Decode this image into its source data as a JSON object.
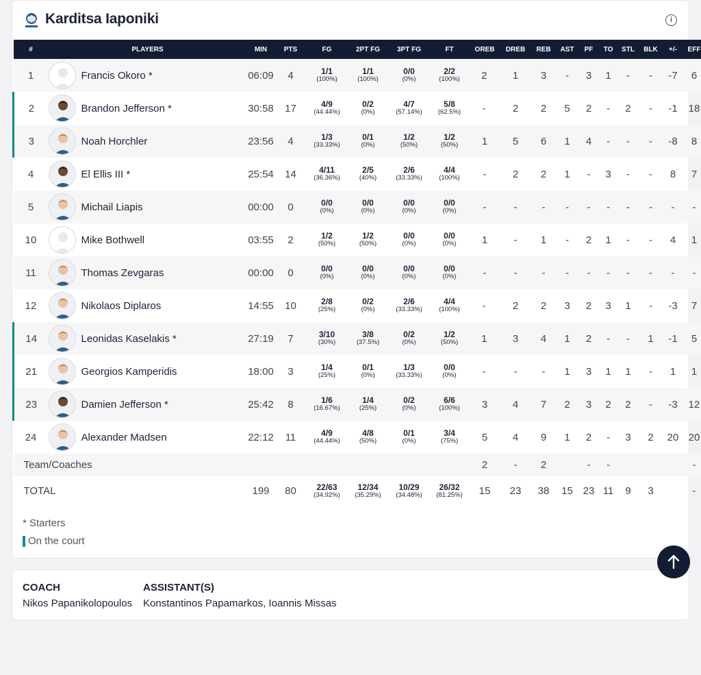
{
  "team": {
    "name": "Karditsa Iaponiki",
    "logo_icon": "team-logo-icon",
    "info_icon": "info-icon"
  },
  "columns": [
    "#",
    "PLAYERS",
    "MIN",
    "PTS",
    "FG",
    "2PT FG",
    "3PT FG",
    "FT",
    "OREB",
    "DREB",
    "REB",
    "AST",
    "PF",
    "TO",
    "STL",
    "BLK",
    "+/-",
    "EFF"
  ],
  "players": [
    {
      "num": "1",
      "name": "Francis Okoro *",
      "oncourt": false,
      "avatar": "empty",
      "min": "06:09",
      "pts": "4",
      "fg": [
        "1/1",
        "(100%)"
      ],
      "fg2": [
        "1/1",
        "(100%)"
      ],
      "fg3": [
        "0/0",
        "(0%)"
      ],
      "ft": [
        "2/2",
        "(100%)"
      ],
      "oreb": "2",
      "dreb": "1",
      "reb": "3",
      "ast": "-",
      "pf": "3",
      "to": "1",
      "stl": "-",
      "blk": "-",
      "pm": "-7",
      "eff": "6"
    },
    {
      "num": "2",
      "name": "Brandon Jefferson *",
      "oncourt": true,
      "avatar": "dark",
      "min": "30:58",
      "pts": "17",
      "fg": [
        "4/9",
        "(44.44%)"
      ],
      "fg2": [
        "0/2",
        "(0%)"
      ],
      "fg3": [
        "4/7",
        "(57.14%)"
      ],
      "ft": [
        "5/8",
        "(62.5%)"
      ],
      "oreb": "-",
      "dreb": "2",
      "reb": "2",
      "ast": "5",
      "pf": "2",
      "to": "-",
      "stl": "2",
      "blk": "-",
      "pm": "-1",
      "eff": "18"
    },
    {
      "num": "3",
      "name": "Noah Horchler",
      "oncourt": true,
      "avatar": "light",
      "min": "23:56",
      "pts": "4",
      "fg": [
        "1/3",
        "(33.33%)"
      ],
      "fg2": [
        "0/1",
        "(0%)"
      ],
      "fg3": [
        "1/2",
        "(50%)"
      ],
      "ft": [
        "1/2",
        "(50%)"
      ],
      "oreb": "1",
      "dreb": "5",
      "reb": "6",
      "ast": "1",
      "pf": "4",
      "to": "-",
      "stl": "-",
      "blk": "-",
      "pm": "-8",
      "eff": "8"
    },
    {
      "num": "4",
      "name": "El Ellis III *",
      "oncourt": false,
      "avatar": "dark",
      "min": "25:54",
      "pts": "14",
      "fg": [
        "4/11",
        "(36.36%)"
      ],
      "fg2": [
        "2/5",
        "(40%)"
      ],
      "fg3": [
        "2/6",
        "(33.33%)"
      ],
      "ft": [
        "4/4",
        "(100%)"
      ],
      "oreb": "-",
      "dreb": "2",
      "reb": "2",
      "ast": "1",
      "pf": "-",
      "to": "3",
      "stl": "-",
      "blk": "-",
      "pm": "8",
      "eff": "7"
    },
    {
      "num": "5",
      "name": "Michail Liapis",
      "oncourt": false,
      "avatar": "light",
      "min": "00:00",
      "pts": "0",
      "fg": [
        "0/0",
        "(0%)"
      ],
      "fg2": [
        "0/0",
        "(0%)"
      ],
      "fg3": [
        "0/0",
        "(0%)"
      ],
      "ft": [
        "0/0",
        "(0%)"
      ],
      "oreb": "-",
      "dreb": "-",
      "reb": "-",
      "ast": "-",
      "pf": "-",
      "to": "-",
      "stl": "-",
      "blk": "-",
      "pm": "-",
      "eff": "-"
    },
    {
      "num": "10",
      "name": "Mike Bothwell",
      "oncourt": false,
      "avatar": "empty",
      "min": "03:55",
      "pts": "2",
      "fg": [
        "1/2",
        "(50%)"
      ],
      "fg2": [
        "1/2",
        "(50%)"
      ],
      "fg3": [
        "0/0",
        "(0%)"
      ],
      "ft": [
        "0/0",
        "(0%)"
      ],
      "oreb": "1",
      "dreb": "-",
      "reb": "1",
      "ast": "-",
      "pf": "2",
      "to": "1",
      "stl": "-",
      "blk": "-",
      "pm": "4",
      "eff": "1"
    },
    {
      "num": "11",
      "name": "Thomas Zevgaras",
      "oncourt": false,
      "avatar": "light",
      "min": "00:00",
      "pts": "0",
      "fg": [
        "0/0",
        "(0%)"
      ],
      "fg2": [
        "0/0",
        "(0%)"
      ],
      "fg3": [
        "0/0",
        "(0%)"
      ],
      "ft": [
        "0/0",
        "(0%)"
      ],
      "oreb": "-",
      "dreb": "-",
      "reb": "-",
      "ast": "-",
      "pf": "-",
      "to": "-",
      "stl": "-",
      "blk": "-",
      "pm": "-",
      "eff": "-"
    },
    {
      "num": "12",
      "name": "Nikolaos Diplaros",
      "oncourt": false,
      "avatar": "light",
      "min": "14:55",
      "pts": "10",
      "fg": [
        "2/8",
        "(25%)"
      ],
      "fg2": [
        "0/2",
        "(0%)"
      ],
      "fg3": [
        "2/6",
        "(33.33%)"
      ],
      "ft": [
        "4/4",
        "(100%)"
      ],
      "oreb": "-",
      "dreb": "2",
      "reb": "2",
      "ast": "3",
      "pf": "2",
      "to": "3",
      "stl": "1",
      "blk": "-",
      "pm": "-3",
      "eff": "7"
    },
    {
      "num": "14",
      "name": "Leonidas Kaselakis *",
      "oncourt": true,
      "avatar": "light",
      "min": "27:19",
      "pts": "7",
      "fg": [
        "3/10",
        "(30%)"
      ],
      "fg2": [
        "3/8",
        "(37.5%)"
      ],
      "fg3": [
        "0/2",
        "(0%)"
      ],
      "ft": [
        "1/2",
        "(50%)"
      ],
      "oreb": "1",
      "dreb": "3",
      "reb": "4",
      "ast": "1",
      "pf": "2",
      "to": "-",
      "stl": "-",
      "blk": "1",
      "pm": "-1",
      "eff": "5"
    },
    {
      "num": "21",
      "name": "Georgios Kamperidis",
      "oncourt": true,
      "avatar": "light",
      "min": "18:00",
      "pts": "3",
      "fg": [
        "1/4",
        "(25%)"
      ],
      "fg2": [
        "0/1",
        "(0%)"
      ],
      "fg3": [
        "1/3",
        "(33.33%)"
      ],
      "ft": [
        "0/0",
        "(0%)"
      ],
      "oreb": "-",
      "dreb": "-",
      "reb": "-",
      "ast": "1",
      "pf": "3",
      "to": "1",
      "stl": "1",
      "blk": "-",
      "pm": "1",
      "eff": "1"
    },
    {
      "num": "23",
      "name": "Damien Jefferson *",
      "oncourt": true,
      "avatar": "dark",
      "min": "25:42",
      "pts": "8",
      "fg": [
        "1/6",
        "(16.67%)"
      ],
      "fg2": [
        "1/4",
        "(25%)"
      ],
      "fg3": [
        "0/2",
        "(0%)"
      ],
      "ft": [
        "6/6",
        "(100%)"
      ],
      "oreb": "3",
      "dreb": "4",
      "reb": "7",
      "ast": "2",
      "pf": "3",
      "to": "2",
      "stl": "2",
      "blk": "-",
      "pm": "-3",
      "eff": "12"
    },
    {
      "num": "24",
      "name": "Alexander Madsen",
      "oncourt": false,
      "avatar": "light",
      "min": "22:12",
      "pts": "11",
      "fg": [
        "4/9",
        "(44.44%)"
      ],
      "fg2": [
        "4/8",
        "(50%)"
      ],
      "fg3": [
        "0/1",
        "(0%)"
      ],
      "ft": [
        "3/4",
        "(75%)"
      ],
      "oreb": "5",
      "dreb": "4",
      "reb": "9",
      "ast": "1",
      "pf": "2",
      "to": "-",
      "stl": "3",
      "blk": "2",
      "pm": "20",
      "eff": "20"
    }
  ],
  "team_coaches": {
    "label": "Team/Coaches",
    "oreb": "2",
    "dreb": "-",
    "reb": "2",
    "ast": "",
    "pf": "-",
    "to": "-",
    "stl": "",
    "blk": "",
    "pm": "",
    "eff": "-"
  },
  "total": {
    "label": "TOTAL",
    "min": "199",
    "pts": "80",
    "fg": [
      "22/63",
      "(34.92%)"
    ],
    "fg2": [
      "12/34",
      "(35.29%)"
    ],
    "fg3": [
      "10/29",
      "(34.48%)"
    ],
    "ft": [
      "26/32",
      "(81.25%)"
    ],
    "oreb": "15",
    "dreb": "23",
    "reb": "38",
    "ast": "15",
    "pf": "23",
    "to": "11",
    "stl": "9",
    "blk": "3",
    "pm": "",
    "eff": "-"
  },
  "legend": {
    "starters": "* Starters",
    "oncourt": "On the court"
  },
  "coach": {
    "coach_label": "COACH",
    "coach_name": "Nikos Papanikolopoulos",
    "assistant_label": "ASSISTANT(S)",
    "assistant_names": "Konstantinos Papamarkos, Ioannis Missas"
  },
  "colors": {
    "header_bg": "#131c33",
    "oncourt": "#17898a",
    "jersey": "#2e5d8a"
  },
  "scroll_icon": "arrow-up-icon"
}
